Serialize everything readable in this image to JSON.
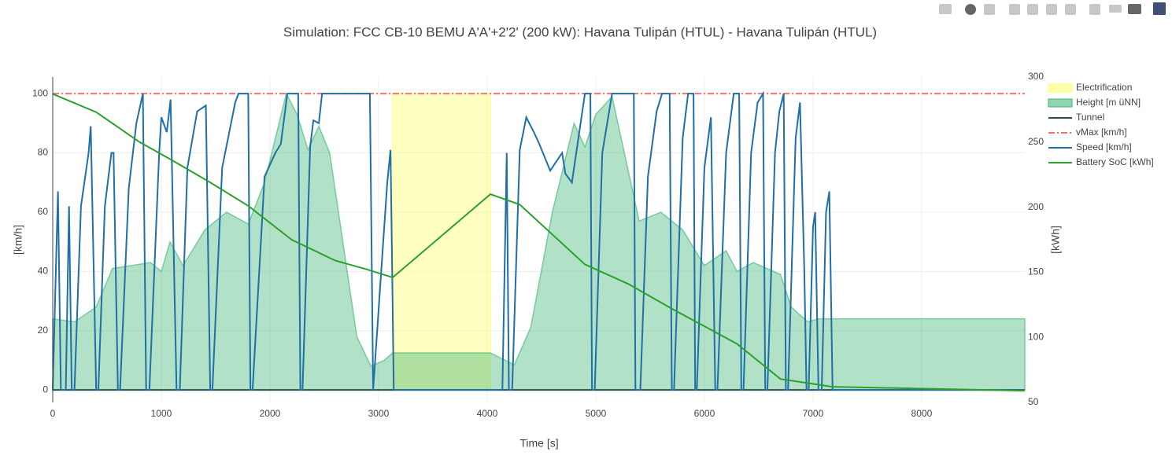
{
  "chart_data": {
    "type": "line",
    "title": "Simulation: FCC CB-10 BEMU A'A'+2'2' (200 kW): Havana Tulipán (HTUL) - Havana Tulipán (HTUL)",
    "x_label": "Time [s]",
    "y_label": "[km/h]",
    "y2_label": "[kWh]",
    "xlim": [
      0,
      8950
    ],
    "xticks": [
      0,
      1000,
      2000,
      3000,
      4000,
      5000,
      6000,
      7000,
      8000
    ],
    "ylim": [
      -4.2,
      105.6
    ],
    "yticks": [
      0,
      20,
      40,
      60,
      80,
      100
    ],
    "y2lim": [
      50,
      300
    ],
    "y2ticks": [
      50,
      100,
      150,
      200,
      250,
      300
    ],
    "grid": true,
    "legend": "right",
    "series": [
      {
        "name": "Electrification",
        "color": "#ffff66",
        "fill": true,
        "axis": "y",
        "x": [
          3130,
          4030
        ],
        "values": [
          100,
          100
        ]
      },
      {
        "name": "Height [m üNN]",
        "color": "#3cb371",
        "fill": true,
        "axis": "y",
        "x": [
          0,
          200,
          400,
          550,
          900,
          1000,
          1080,
          1200,
          1400,
          1600,
          1800,
          1950,
          2150,
          2250,
          2350,
          2450,
          2550,
          2800,
          2930,
          3050,
          3130,
          4030,
          4250,
          4400,
          4600,
          4800,
          4900,
          5000,
          5150,
          5400,
          5600,
          5800,
          6000,
          6200,
          6300,
          6450,
          6700,
          6800,
          6950,
          7050,
          8950
        ],
        "values": [
          24,
          23,
          28,
          41,
          43,
          40,
          50,
          42,
          54,
          60,
          56,
          70,
          100,
          93,
          81,
          89,
          80,
          18,
          8,
          10,
          12.5,
          12.5,
          8.5,
          21,
          60,
          90,
          82,
          93,
          99,
          57,
          60,
          54,
          42,
          47,
          40,
          43,
          39,
          28,
          23,
          24,
          24
        ]
      },
      {
        "name": "Tunnel",
        "color": "#2f4f4f",
        "fill": false,
        "axis": "y",
        "x": [
          0,
          8950
        ],
        "values": [
          0,
          0
        ]
      },
      {
        "name": "vMax [km/h]",
        "color": "#f4736f",
        "fill": false,
        "dash": "8,3,2,3",
        "axis": "y",
        "x": [
          0,
          8950
        ],
        "values": [
          100,
          100
        ]
      },
      {
        "name": "Speed [km/h]",
        "color": "#1f6fa8",
        "fill": false,
        "axis": "y",
        "x": [
          0,
          48,
          75,
          120,
          150,
          175,
          200,
          260,
          330,
          350,
          400,
          420,
          480,
          540,
          560,
          600,
          620,
          700,
          770,
          830,
          860,
          890,
          980,
          1000,
          1050,
          1085,
          1140,
          1170,
          1240,
          1330,
          1410,
          1450,
          1470,
          1560,
          1680,
          1710,
          1800,
          1820,
          1840,
          1950,
          2050,
          2100,
          2160,
          2260,
          2280,
          2300,
          2370,
          2400,
          2450,
          2480,
          2920,
          2950,
          3080,
          3110,
          3140,
          4140,
          4180,
          4200,
          4230,
          4300,
          4360,
          4430,
          4480,
          4580,
          4690,
          4720,
          4780,
          4840,
          4900,
          4950,
          4965,
          4990,
          5060,
          5150,
          5350,
          5365,
          5410,
          5480,
          5560,
          5610,
          5680,
          5700,
          5720,
          5800,
          5850,
          5900,
          5915,
          5930,
          6000,
          6060,
          6100,
          6120,
          6200,
          6270,
          6320,
          6340,
          6360,
          6430,
          6490,
          6540,
          6560,
          6580,
          6650,
          6690,
          6730,
          6750,
          6770,
          6840,
          6880,
          6920,
          6940,
          6960,
          7000,
          7020,
          7050,
          7080,
          7120,
          7150,
          7180,
          8950
        ],
        "values": [
          0,
          67,
          0,
          0,
          62,
          0,
          0,
          62,
          80,
          89,
          0,
          0,
          62,
          80,
          80,
          0,
          0,
          68,
          90,
          100,
          0,
          0,
          80,
          92,
          87,
          98,
          0,
          0,
          75,
          94,
          96,
          0,
          0,
          75,
          97,
          100,
          100,
          0,
          0,
          72,
          80,
          83,
          100,
          100,
          0,
          0,
          82,
          91,
          90,
          100,
          100,
          0,
          70,
          81,
          0,
          0,
          80,
          0,
          0,
          81,
          92,
          87,
          83,
          74,
          80,
          73,
          70,
          85,
          100,
          100,
          0,
          0,
          80,
          100,
          100,
          0,
          0,
          72,
          94,
          100,
          100,
          0,
          0,
          85,
          100,
          100,
          0,
          0,
          75,
          92,
          0,
          0,
          80,
          100,
          100,
          0,
          0,
          80,
          97,
          100,
          0,
          0,
          80,
          94,
          100,
          0,
          0,
          85,
          97,
          40,
          0,
          0,
          55,
          60,
          0,
          0,
          60,
          67,
          0,
          0
        ]
      },
      {
        "name": "Battery SoC [kWh]",
        "color": "#2ca02c",
        "fill": false,
        "axis": "y2",
        "x": [
          0,
          400,
          800,
          1100,
          1450,
          1800,
          2200,
          2600,
          2900,
          3130,
          4030,
          4300,
          4900,
          5300,
          5700,
          6300,
          6700,
          7180,
          8950
        ],
        "values": [
          287,
          273,
          250,
          236,
          219,
          201,
          175,
          159,
          152,
          146,
          210,
          202,
          156,
          141,
          122,
          95,
          68,
          62,
          59
        ]
      }
    ]
  }
}
